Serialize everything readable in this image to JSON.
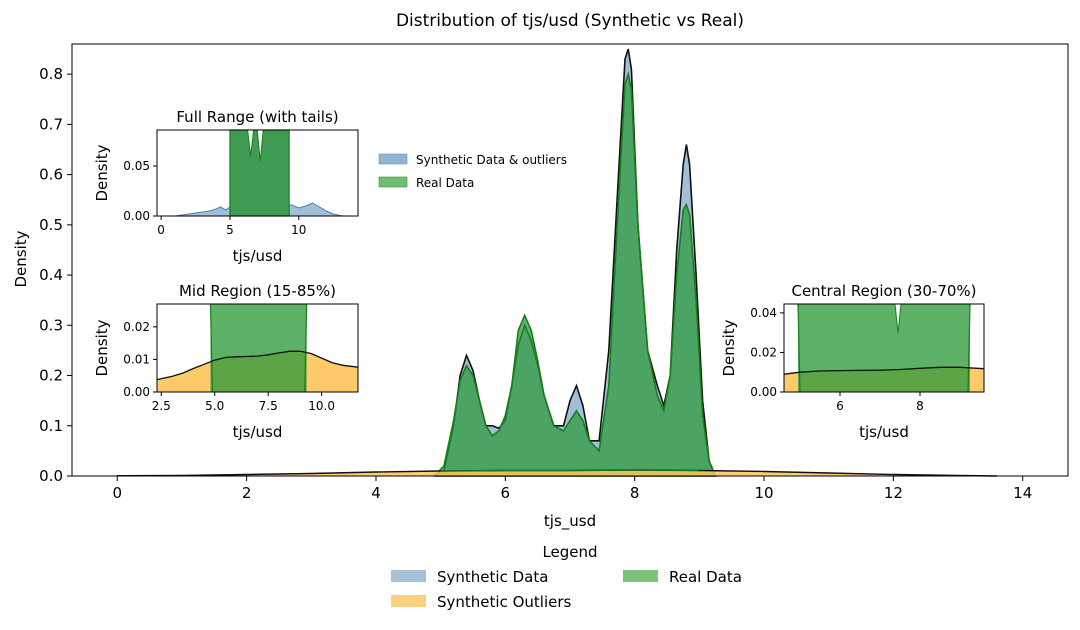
{
  "chart_data": {
    "type": "area",
    "title": "Distribution of tjs/usd (Synthetic vs Real)",
    "xlabel": "tjs_usd",
    "ylabel": "Density",
    "xlim": [
      -0.7,
      14.7
    ],
    "ylim": [
      0,
      0.86
    ],
    "xticks": [
      0,
      2,
      4,
      6,
      8,
      10,
      12,
      14
    ],
    "yticks": [
      0.0,
      0.1,
      0.2,
      0.3,
      0.4,
      0.5,
      0.6,
      0.7,
      0.8
    ],
    "colors": {
      "synthetic": "#92b4d4",
      "outliers": "#fdc45a",
      "real": "#2e9b3c",
      "real_line": "#1a7f1a",
      "synthetic_line": "#111111"
    },
    "series": [
      {
        "name": "Synthetic Data",
        "color": "#92b4d4",
        "points": [
          [
            4.9,
            0
          ],
          [
            5.05,
            0.01
          ],
          [
            5.2,
            0.1
          ],
          [
            5.3,
            0.2
          ],
          [
            5.4,
            0.24
          ],
          [
            5.5,
            0.21
          ],
          [
            5.6,
            0.15
          ],
          [
            5.7,
            0.1
          ],
          [
            5.8,
            0.1
          ],
          [
            5.9,
            0.095
          ],
          [
            6.0,
            0.11
          ],
          [
            6.1,
            0.18
          ],
          [
            6.2,
            0.26
          ],
          [
            6.3,
            0.3
          ],
          [
            6.4,
            0.27
          ],
          [
            6.5,
            0.22
          ],
          [
            6.6,
            0.16
          ],
          [
            6.75,
            0.1
          ],
          [
            6.9,
            0.1
          ],
          [
            7.0,
            0.15
          ],
          [
            7.1,
            0.18
          ],
          [
            7.2,
            0.14
          ],
          [
            7.3,
            0.07
          ],
          [
            7.45,
            0.07
          ],
          [
            7.6,
            0.25
          ],
          [
            7.75,
            0.6
          ],
          [
            7.85,
            0.83
          ],
          [
            7.9,
            0.85
          ],
          [
            7.95,
            0.81
          ],
          [
            8.05,
            0.5
          ],
          [
            8.2,
            0.25
          ],
          [
            8.35,
            0.18
          ],
          [
            8.45,
            0.14
          ],
          [
            8.55,
            0.2
          ],
          [
            8.65,
            0.45
          ],
          [
            8.75,
            0.62
          ],
          [
            8.8,
            0.66
          ],
          [
            8.85,
            0.62
          ],
          [
            8.95,
            0.4
          ],
          [
            9.05,
            0.15
          ],
          [
            9.15,
            0.03
          ],
          [
            9.25,
            0
          ]
        ]
      },
      {
        "name": "Real Data",
        "color": "#2e9b3c",
        "points": [
          [
            4.9,
            0
          ],
          [
            5.05,
            0.02
          ],
          [
            5.2,
            0.11
          ],
          [
            5.3,
            0.19
          ],
          [
            5.4,
            0.22
          ],
          [
            5.5,
            0.2
          ],
          [
            5.6,
            0.15
          ],
          [
            5.7,
            0.1
          ],
          [
            5.8,
            0.08
          ],
          [
            5.9,
            0.09
          ],
          [
            6.0,
            0.12
          ],
          [
            6.1,
            0.18
          ],
          [
            6.2,
            0.29
          ],
          [
            6.3,
            0.32
          ],
          [
            6.4,
            0.29
          ],
          [
            6.5,
            0.23
          ],
          [
            6.6,
            0.16
          ],
          [
            6.75,
            0.1
          ],
          [
            6.9,
            0.09
          ],
          [
            7.0,
            0.11
          ],
          [
            7.1,
            0.13
          ],
          [
            7.2,
            0.11
          ],
          [
            7.3,
            0.07
          ],
          [
            7.45,
            0.05
          ],
          [
            7.6,
            0.18
          ],
          [
            7.75,
            0.55
          ],
          [
            7.85,
            0.78
          ],
          [
            7.9,
            0.8
          ],
          [
            7.95,
            0.77
          ],
          [
            8.05,
            0.5
          ],
          [
            8.2,
            0.25
          ],
          [
            8.35,
            0.16
          ],
          [
            8.45,
            0.13
          ],
          [
            8.55,
            0.2
          ],
          [
            8.65,
            0.4
          ],
          [
            8.75,
            0.53
          ],
          [
            8.8,
            0.54
          ],
          [
            8.85,
            0.52
          ],
          [
            8.95,
            0.35
          ],
          [
            9.05,
            0.12
          ],
          [
            9.15,
            0.03
          ],
          [
            9.25,
            0
          ]
        ]
      },
      {
        "name": "Synthetic Outliers",
        "color": "#fdc45a",
        "points": [
          [
            0,
            0.0005
          ],
          [
            1,
            0.001
          ],
          [
            2,
            0.003
          ],
          [
            3,
            0.005
          ],
          [
            4,
            0.008
          ],
          [
            5,
            0.01
          ],
          [
            6,
            0.011
          ],
          [
            7,
            0.011
          ],
          [
            8,
            0.012
          ],
          [
            9,
            0.011
          ],
          [
            10,
            0.009
          ],
          [
            11,
            0.006
          ],
          [
            12,
            0.003
          ],
          [
            13,
            0.001
          ],
          [
            13.6,
            0
          ]
        ]
      }
    ],
    "legend": {
      "title": "Legend",
      "entries": [
        "Synthetic Data",
        "Synthetic Outliers",
        "Real Data"
      ],
      "placement": "bottom-center"
    },
    "inset_legend": {
      "entries": [
        "Synthetic Data & outliers",
        "Real Data"
      ],
      "placement": "upper-middle"
    },
    "insets": [
      {
        "title": "Full Range (with tails)",
        "xlabel": "tjs/usd",
        "ylabel": "Density",
        "xlim": [
          -0.3,
          14.3
        ],
        "ylim": [
          0,
          0.086
        ],
        "xticks": [
          0,
          5,
          10
        ],
        "xtick_labels": [
          "0",
          "5",
          "10"
        ],
        "yticks": [
          0,
          0.05
        ],
        "ytick_labels": [
          "0.00",
          "0.05"
        ],
        "synthetic_tail": [
          [
            1,
            0
          ],
          [
            1.5,
            0.001
          ],
          [
            2,
            0.002
          ],
          [
            2.5,
            0.003
          ],
          [
            3,
            0.004
          ],
          [
            3.5,
            0.005
          ],
          [
            4,
            0.007
          ],
          [
            4.3,
            0.009
          ],
          [
            4.7,
            0.006
          ],
          [
            5,
            0.009
          ],
          [
            5.5,
            0.01
          ],
          [
            6,
            0.011
          ],
          [
            7,
            0.011
          ],
          [
            8,
            0.012
          ],
          [
            9,
            0.011
          ],
          [
            9.5,
            0.011
          ],
          [
            10,
            0.008
          ],
          [
            10.5,
            0.01
          ],
          [
            11,
            0.013
          ],
          [
            11.5,
            0.009
          ],
          [
            12,
            0.005
          ],
          [
            12.5,
            0.002
          ],
          [
            13,
            0.0005
          ],
          [
            13.3,
            0
          ]
        ],
        "real_range": [
          5.0,
          9.3
        ],
        "real_notches": [
          [
            6.5,
            0.06
          ],
          [
            7.2,
            0.055
          ]
        ]
      },
      {
        "title": "Mid Region (15-85%)",
        "xlabel": "tjs/usd",
        "ylabel": "Density",
        "xlim": [
          2.3,
          11.7
        ],
        "ylim": [
          0,
          0.027
        ],
        "xticks": [
          2.5,
          5.0,
          7.5,
          10.0
        ],
        "xtick_labels": [
          "2.5",
          "5.0",
          "7.5",
          "10.0"
        ],
        "yticks": [
          0,
          0.01,
          0.02
        ],
        "ytick_labels": [
          "0.00",
          "0.01",
          "0.02"
        ],
        "outlier_curve": [
          [
            2.3,
            0.0038
          ],
          [
            3,
            0.0048
          ],
          [
            3.5,
            0.0058
          ],
          [
            4,
            0.0072
          ],
          [
            4.5,
            0.0085
          ],
          [
            5,
            0.0098
          ],
          [
            5.5,
            0.0106
          ],
          [
            6,
            0.0108
          ],
          [
            6.5,
            0.0109
          ],
          [
            7,
            0.011
          ],
          [
            7.5,
            0.0114
          ],
          [
            8,
            0.012
          ],
          [
            8.5,
            0.0125
          ],
          [
            9,
            0.0125
          ],
          [
            9.5,
            0.0118
          ],
          [
            10,
            0.0104
          ],
          [
            10.5,
            0.009
          ],
          [
            11,
            0.0082
          ],
          [
            11.7,
            0.0076
          ]
        ],
        "real_range": [
          4.8,
          9.3
        ]
      },
      {
        "title": "Central Region (30-70%)",
        "xlabel": "tjs/usd",
        "ylabel": "Density",
        "xlim": [
          4.6,
          9.6
        ],
        "ylim": [
          0,
          0.0445
        ],
        "xticks": [
          6,
          8
        ],
        "xtick_labels": [
          "6",
          "8"
        ],
        "yticks": [
          0,
          0.02,
          0.04
        ],
        "ytick_labels": [
          "0.00",
          "0.02",
          "0.04"
        ],
        "outlier_curve": [
          [
            4.6,
            0.009
          ],
          [
            5,
            0.01
          ],
          [
            5.5,
            0.0106
          ],
          [
            6,
            0.0108
          ],
          [
            6.5,
            0.0109
          ],
          [
            7,
            0.011
          ],
          [
            7.5,
            0.0114
          ],
          [
            8,
            0.012
          ],
          [
            8.5,
            0.0125
          ],
          [
            9,
            0.0125
          ],
          [
            9.6,
            0.0118
          ]
        ],
        "real_range": [
          4.95,
          9.25
        ],
        "real_notch": [
          7.45,
          0.03
        ]
      }
    ]
  }
}
